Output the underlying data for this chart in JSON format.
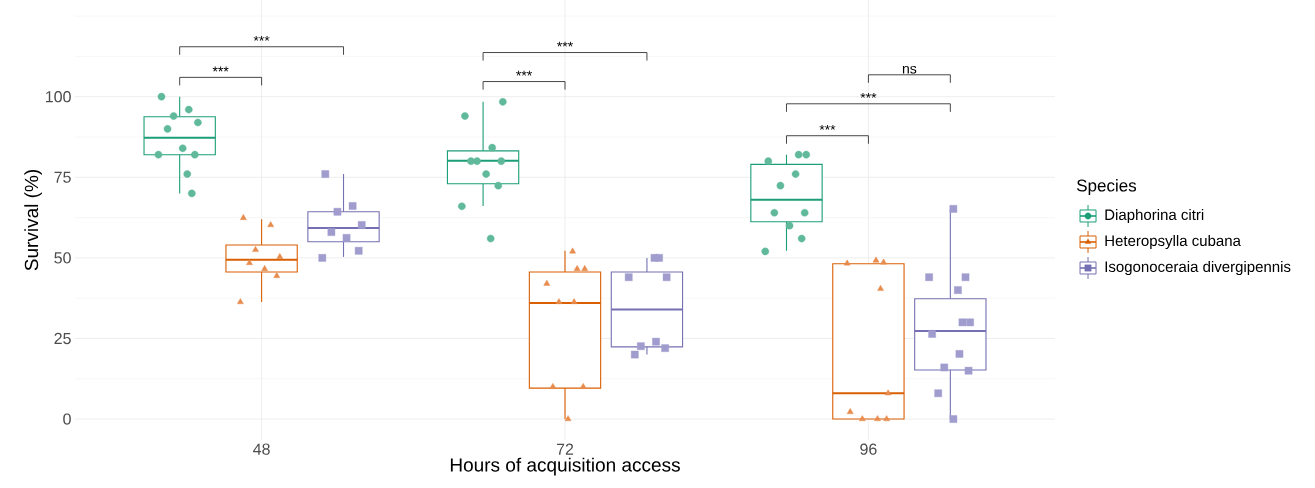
{
  "chart_data": {
    "type": "box",
    "xlabel": "Hours of acquisition access",
    "ylabel": "Survival (%)",
    "legend_title": "Species",
    "legend": "right",
    "grid": true,
    "categories": [
      "48",
      "72",
      "96"
    ],
    "ylim": [
      -6.5,
      130
    ],
    "yticks": [
      0,
      25,
      50,
      75,
      100
    ],
    "annotations": [
      "***",
      "***",
      "***",
      "***",
      "ns",
      "***",
      "***"
    ],
    "series": [
      {
        "name": "Diaphorina citri",
        "type": "box",
        "color": "#1b9e77",
        "marker": "circle",
        "boxes": [
          {
            "low": 70,
            "q1": 82,
            "median": 87.3,
            "q3": 93.8,
            "high": 100
          },
          {
            "low": 66.1,
            "q1": 73,
            "median": 80.1,
            "q3": 83.2,
            "high": 98.4
          },
          {
            "low": 52.2,
            "q1": 61.2,
            "median": 68,
            "q3": 79,
            "high": 82
          }
        ]
      },
      {
        "name": "Heteropsylla cubana",
        "type": "box",
        "color": "#d95f02",
        "marker": "triangle",
        "boxes": [
          {
            "low": 36.3,
            "q1": 45.6,
            "median": 49.4,
            "q3": 54,
            "high": 62
          },
          {
            "low": 0,
            "q1": 9.6,
            "median": 36,
            "q3": 45.6,
            "high": 52.2
          },
          {
            "low": 0,
            "q1": 0,
            "median": 8,
            "q3": 48.2,
            "high": 48.2
          }
        ]
      },
      {
        "name": "Isogonoceraia divergipennis",
        "type": "box",
        "color": "#7570b3",
        "marker": "square",
        "boxes": [
          {
            "low": 50.3,
            "q1": 55,
            "median": 59.3,
            "q3": 64.3,
            "high": 76
          },
          {
            "low": 20,
            "q1": 22.4,
            "median": 34,
            "q3": 45.6,
            "high": 50
          },
          {
            "low": 0,
            "q1": 15.2,
            "median": 27.3,
            "q3": 37.3,
            "high": 65.2
          }
        ]
      },
      {
        "type": "scatter",
        "color": "#5fb99a",
        "marker": "circle",
        "x": [
          "48",
          "48",
          "48",
          "48",
          "48",
          "48",
          "48",
          "48",
          "48",
          "48",
          "72",
          "72",
          "72",
          "72",
          "72",
          "72",
          "72",
          "72",
          "72",
          "72",
          "96",
          "96",
          "96",
          "96",
          "96",
          "96",
          "96",
          "96",
          "96",
          "96"
        ],
        "values": [
          100,
          96,
          94,
          92,
          90,
          84,
          82,
          82,
          76,
          70,
          98.4,
          94,
          84.2,
          80,
          80,
          80,
          76,
          72.4,
          66,
          56,
          82,
          82,
          80,
          76,
          72.4,
          64,
          64,
          60,
          56,
          52
        ]
      },
      {
        "type": "scatter",
        "color": "#e88c4e",
        "marker": "triangle",
        "x": [
          "48",
          "48",
          "48",
          "48",
          "48",
          "48",
          "48",
          "48",
          "72",
          "72",
          "72",
          "72",
          "72",
          "72",
          "72",
          "72",
          "72",
          "96",
          "96",
          "96",
          "96",
          "96",
          "96",
          "96",
          "96",
          "96"
        ],
        "values": [
          62.4,
          60.2,
          52.5,
          50.3,
          48.4,
          46.6,
          44.4,
          36.3,
          52,
          46.6,
          46.6,
          42,
          36.3,
          36.3,
          10,
          10,
          0,
          48.6,
          48.3,
          49.2,
          40.4,
          8,
          2.2,
          0,
          0,
          0
        ]
      },
      {
        "type": "scatter",
        "color": "#a09cce",
        "marker": "square",
        "x": [
          "48",
          "48",
          "48",
          "48",
          "48",
          "48",
          "48",
          "48",
          "72",
          "72",
          "72",
          "72",
          "72",
          "72",
          "72",
          "72",
          "96",
          "96",
          "96",
          "96",
          "96",
          "96",
          "96",
          "96",
          "96",
          "96",
          "96",
          "96"
        ],
        "values": [
          76,
          66.1,
          64.3,
          60.2,
          58,
          56.2,
          52.2,
          50,
          50,
          50,
          44,
          44,
          24,
          22.6,
          22,
          20,
          65.2,
          44,
          44,
          40,
          30,
          30,
          26.4,
          20.2,
          16,
          15,
          8,
          0
        ]
      }
    ]
  }
}
